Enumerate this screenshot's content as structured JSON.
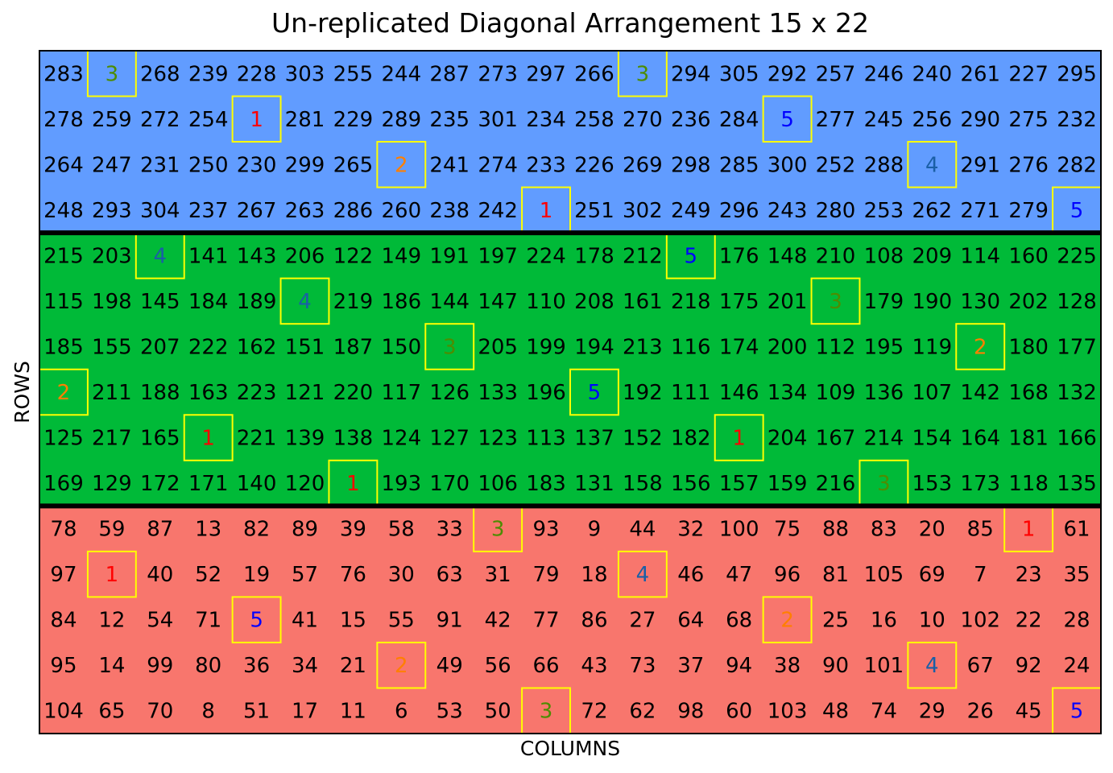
{
  "chart_data": {
    "type": "heatmap",
    "title": "Un-replicated Diagonal Arrangement 15 x 22",
    "xlabel": "COLUMNS",
    "ylabel": "ROWS",
    "n_rows": 15,
    "n_cols": 22,
    "blocks": [
      {
        "rows": [
          1,
          4
        ],
        "color": "#619CFF"
      },
      {
        "rows": [
          5,
          10
        ],
        "color": "#00BA38"
      },
      {
        "rows": [
          11,
          15
        ],
        "color": "#F8766D"
      }
    ],
    "check_colors": {
      "1": "#FF0000",
      "2": "#FF7F00",
      "3": "#4D8C00",
      "4": "#1A5FA6",
      "5": "#0000FF"
    },
    "check_border_color": "#FFFF00",
    "block_separator_color": "#000000",
    "checks": [
      [
        1,
        2,
        3
      ],
      [
        1,
        13,
        3
      ],
      [
        2,
        5,
        1
      ],
      [
        2,
        16,
        5
      ],
      [
        3,
        8,
        2
      ],
      [
        3,
        19,
        4
      ],
      [
        4,
        11,
        1
      ],
      [
        4,
        22,
        5
      ],
      [
        5,
        3,
        4
      ],
      [
        5,
        14,
        5
      ],
      [
        6,
        6,
        4
      ],
      [
        6,
        17,
        3
      ],
      [
        7,
        9,
        3
      ],
      [
        7,
        20,
        2
      ],
      [
        8,
        1,
        2
      ],
      [
        8,
        12,
        5
      ],
      [
        9,
        4,
        1
      ],
      [
        9,
        15,
        1
      ],
      [
        10,
        7,
        1
      ],
      [
        10,
        18,
        3
      ],
      [
        11,
        10,
        3
      ],
      [
        11,
        21,
        1
      ],
      [
        12,
        2,
        1
      ],
      [
        12,
        13,
        4
      ],
      [
        13,
        5,
        5
      ],
      [
        13,
        16,
        2
      ],
      [
        14,
        8,
        2
      ],
      [
        14,
        19,
        4
      ],
      [
        15,
        11,
        3
      ],
      [
        15,
        22,
        5
      ]
    ],
    "values": [
      [
        283,
        3,
        268,
        239,
        228,
        303,
        255,
        244,
        287,
        273,
        297,
        266,
        3,
        294,
        305,
        292,
        257,
        246,
        240,
        261,
        227,
        295
      ],
      [
        278,
        259,
        272,
        254,
        1,
        281,
        229,
        289,
        235,
        301,
        234,
        258,
        270,
        236,
        284,
        5,
        277,
        245,
        256,
        290,
        275,
        232
      ],
      [
        264,
        247,
        231,
        250,
        230,
        299,
        265,
        2,
        241,
        274,
        233,
        226,
        269,
        298,
        285,
        300,
        252,
        288,
        4,
        291,
        276,
        282
      ],
      [
        248,
        293,
        304,
        237,
        267,
        263,
        286,
        260,
        238,
        242,
        1,
        251,
        302,
        249,
        296,
        243,
        280,
        253,
        262,
        271,
        279,
        5
      ],
      [
        215,
        203,
        4,
        141,
        143,
        206,
        122,
        149,
        191,
        197,
        224,
        178,
        212,
        5,
        176,
        148,
        210,
        108,
        209,
        114,
        160,
        225
      ],
      [
        115,
        198,
        145,
        184,
        189,
        4,
        219,
        186,
        144,
        147,
        110,
        208,
        161,
        218,
        175,
        201,
        3,
        179,
        190,
        130,
        202,
        128
      ],
      [
        185,
        155,
        207,
        222,
        162,
        151,
        187,
        150,
        3,
        205,
        199,
        194,
        213,
        116,
        174,
        200,
        112,
        195,
        119,
        2,
        180,
        177
      ],
      [
        2,
        211,
        188,
        163,
        223,
        121,
        220,
        117,
        126,
        133,
        196,
        5,
        192,
        111,
        146,
        134,
        109,
        136,
        107,
        142,
        168,
        132
      ],
      [
        125,
        217,
        165,
        1,
        221,
        139,
        138,
        124,
        127,
        123,
        113,
        137,
        152,
        182,
        1,
        204,
        167,
        214,
        154,
        164,
        181,
        166
      ],
      [
        169,
        129,
        172,
        171,
        140,
        120,
        1,
        193,
        170,
        106,
        183,
        131,
        158,
        156,
        157,
        159,
        216,
        3,
        153,
        173,
        118,
        135
      ],
      [
        78,
        59,
        87,
        13,
        82,
        89,
        39,
        58,
        33,
        3,
        93,
        9,
        44,
        32,
        100,
        75,
        88,
        83,
        20,
        85,
        1,
        61
      ],
      [
        97,
        1,
        40,
        52,
        19,
        57,
        76,
        30,
        63,
        31,
        79,
        18,
        4,
        46,
        47,
        96,
        81,
        105,
        69,
        7,
        23,
        35
      ],
      [
        84,
        12,
        54,
        71,
        5,
        41,
        15,
        55,
        91,
        42,
        77,
        86,
        27,
        64,
        68,
        2,
        25,
        16,
        10,
        102,
        22,
        28
      ],
      [
        95,
        14,
        99,
        80,
        36,
        34,
        21,
        2,
        49,
        56,
        66,
        43,
        73,
        37,
        94,
        38,
        90,
        101,
        4,
        67,
        92,
        24
      ],
      [
        104,
        65,
        70,
        8,
        51,
        17,
        11,
        6,
        53,
        50,
        3,
        72,
        62,
        98,
        60,
        103,
        48,
        74,
        29,
        26,
        45,
        5
      ]
    ]
  }
}
